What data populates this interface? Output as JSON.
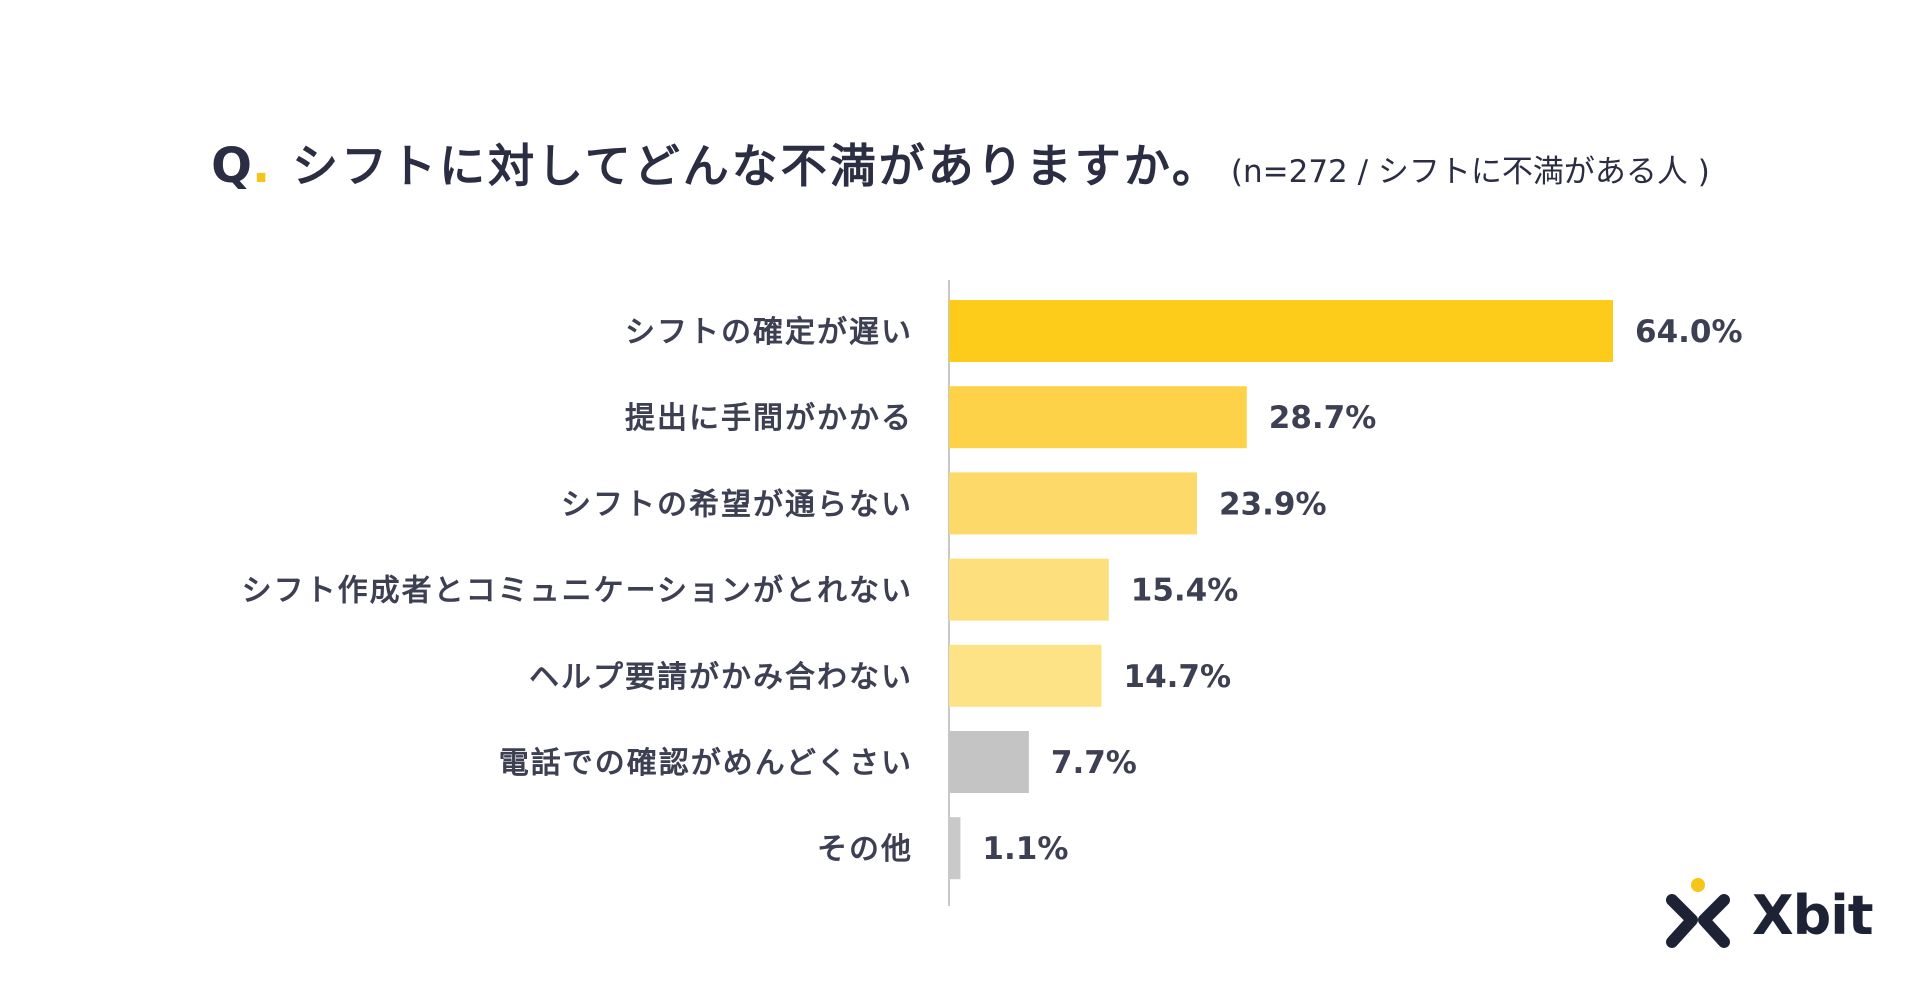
{
  "header": {
    "q_letter": "Q",
    "q_dot": ".",
    "title": "シフトに対してどんな不満がありますか。",
    "subtitle": "(n=272 / シフトに不満がある人 )"
  },
  "brand": {
    "name": "Xbit",
    "icon": "xbit-person-icon",
    "accent": "#f5c518",
    "dark": "#1d2235"
  },
  "chart_data": {
    "type": "bar",
    "orientation": "horizontal",
    "title": "シフトに対してどんな不満がありますか。",
    "categories": [
      "シフトの確定が遅い",
      "提出に手間がかかる",
      "シフトの希望が通らない",
      "シフト作成者とコミュニケーションがとれない",
      "ヘルプ要請がかみ合わない",
      "電話での確認がめんどくさい",
      "その他"
    ],
    "values": [
      64.0,
      28.7,
      23.9,
      15.4,
      14.7,
      7.7,
      1.1
    ],
    "value_labels": [
      "64.0%",
      "28.7%",
      "23.9%",
      "15.4%",
      "14.7%",
      "7.7%",
      "1.1%"
    ],
    "colors": [
      "#fdcc1a",
      "#fdd148",
      "#fcd969",
      "#fddf7d",
      "#fde385",
      "#c4c4c4",
      "#c9c9c9"
    ],
    "unit": "%",
    "xlim": [
      0,
      64.0
    ],
    "grid": false,
    "legend": "none"
  }
}
